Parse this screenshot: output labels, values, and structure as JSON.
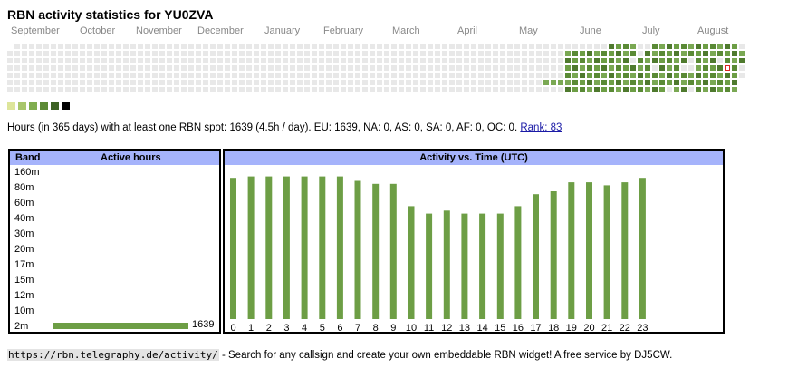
{
  "title": "RBN activity statistics for YU0ZVA",
  "months": [
    "September",
    "October",
    "November",
    "December",
    "January",
    "February",
    "March",
    "April",
    "May",
    "June",
    "July",
    "August"
  ],
  "legend_colors": [
    "#dde59a",
    "#a8c66b",
    "#80ad4f",
    "#5c8a35",
    "#3d6224",
    "#000000"
  ],
  "summary": {
    "text": "Hours (in 365 days) with at least one RBN spot: 1639 (4.5h / day). EU: 1639, NA: 0, AS: 0, SA: 0, AF: 0, OC: 0.",
    "rank_label": "Rank: 83"
  },
  "band_table": {
    "header_band": "Band",
    "header_hours": "Active hours",
    "bands": [
      "160m",
      "80m",
      "60m",
      "40m",
      "30m",
      "20m",
      "17m",
      "15m",
      "12m",
      "10m",
      "2m"
    ],
    "active_band": "2m",
    "active_hours": "1639"
  },
  "chart_data": {
    "type": "bar",
    "title": "Activity vs. Time (UTC)",
    "categories": [
      "0",
      "1",
      "2",
      "3",
      "4",
      "5",
      "6",
      "7",
      "8",
      "9",
      "10",
      "11",
      "12",
      "13",
      "14",
      "15",
      "16",
      "17",
      "18",
      "19",
      "20",
      "21",
      "22",
      "23"
    ],
    "values": [
      95,
      96,
      96,
      96,
      96,
      96,
      96,
      93,
      91,
      91,
      76,
      71,
      73,
      71,
      71,
      71,
      76,
      84,
      86,
      92,
      92,
      90,
      92,
      95
    ],
    "ylim": [
      0,
      100
    ],
    "bar_color": "#6d9e45"
  },
  "footer": {
    "url": "https://rbn.telegraphy.de/activity/",
    "text": " - Search for any callsign and create your own embeddable RBN widget! A free service by DJ5CW."
  }
}
